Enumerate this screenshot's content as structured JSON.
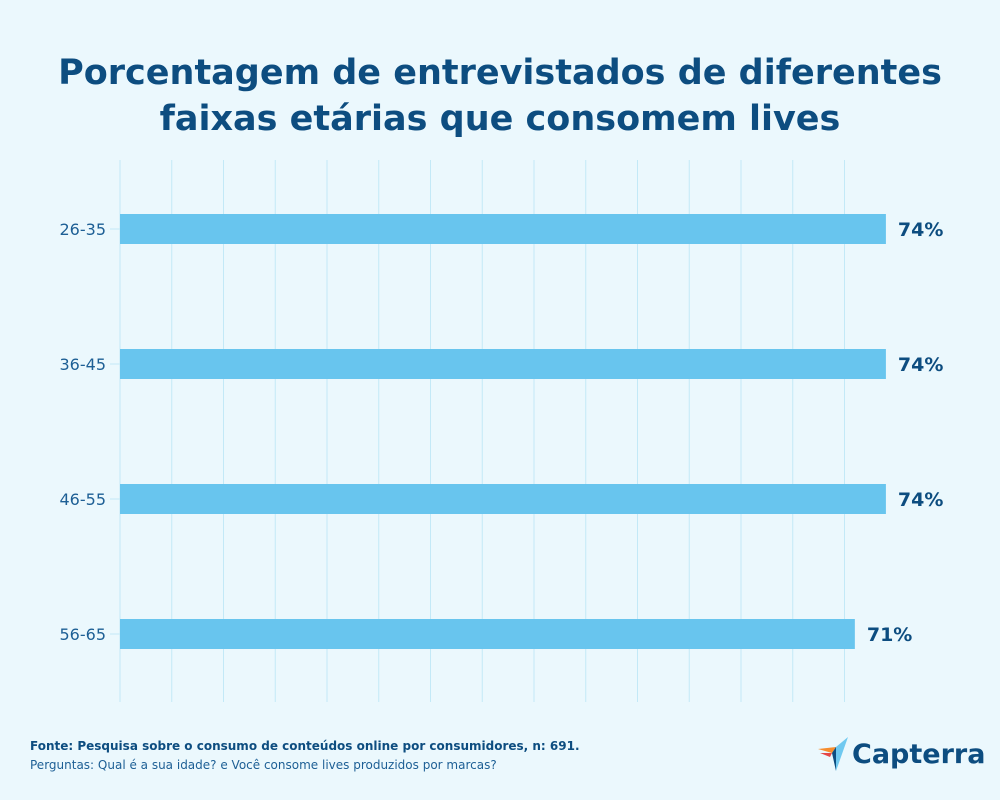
{
  "chart_data": {
    "type": "bar",
    "orientation": "horizontal",
    "title": "Porcentagem de entrevistados de diferentes faixas etárias que consomem lives",
    "categories": [
      "26-35",
      "36-45",
      "46-55",
      "56-65"
    ],
    "values": [
      74,
      74,
      74,
      71
    ],
    "data_labels": [
      "74%",
      "74%",
      "74%",
      "71%"
    ],
    "xlim": [
      0,
      75
    ],
    "grid": "vertical, every 5",
    "colors": {
      "bar": "#68c5ee",
      "label": "#0d4d80",
      "grid": "#c3e9f7"
    }
  },
  "footer": {
    "source": "Fonte: Pesquisa sobre o consumo de conteúdos online por consumidores, n: 691.",
    "questions": "Perguntas: Qual é a sua idade? e Você consome lives produzidos por marcas?"
  },
  "logo": {
    "text": "Capterra"
  }
}
